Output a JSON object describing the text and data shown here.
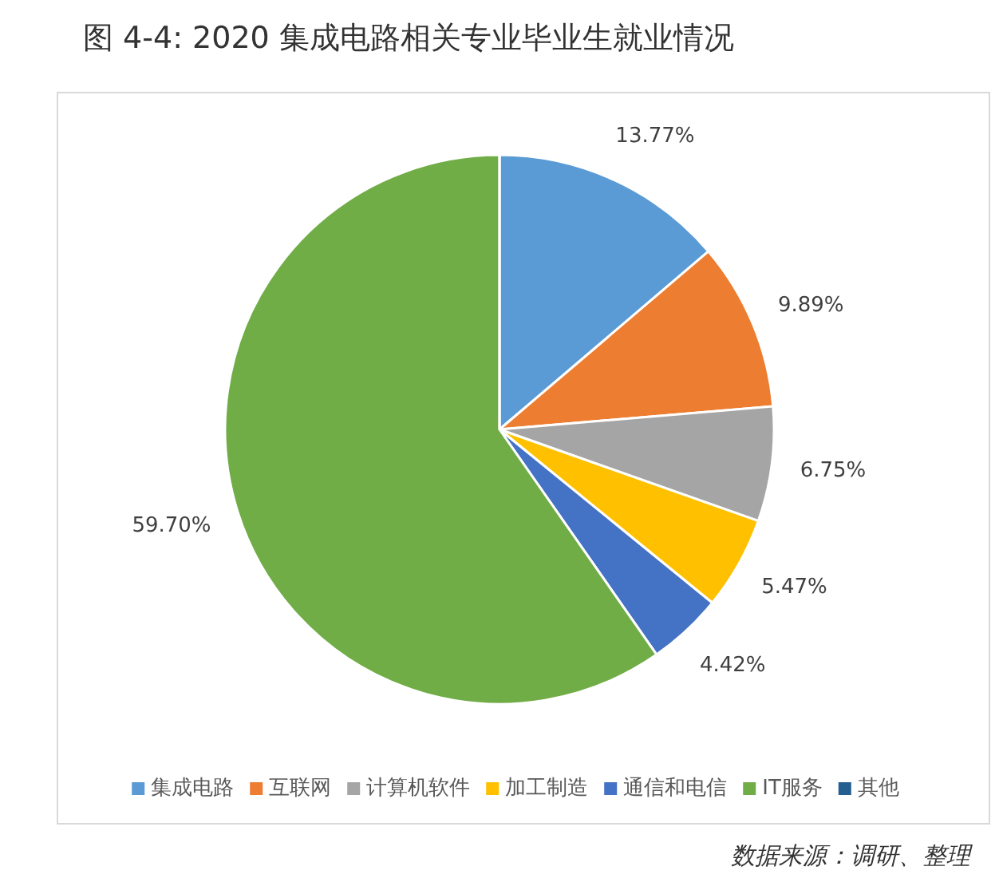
{
  "chart_data": {
    "type": "pie",
    "title": "图 4-4: 2020 集成电路相关专业毕业生就业情况",
    "categories": [
      "集成电路",
      "互联网",
      "计算机软件",
      "加工制造",
      "通信和电信",
      "IT服务",
      "其他"
    ],
    "values": [
      13.77,
      9.89,
      6.75,
      5.47,
      4.42,
      59.7,
      0
    ],
    "value_labels": [
      "13.77%",
      "9.89%",
      "6.75%",
      "5.47%",
      "4.42%",
      "59.70%",
      null
    ],
    "colors": [
      "#5b9bd5",
      "#ed7d31",
      "#a5a5a5",
      "#ffc000",
      "#4472c4",
      "#70ad47",
      "#255e91"
    ],
    "legend": "bottom",
    "annotations": [
      "数据来源：调研、整理"
    ]
  }
}
